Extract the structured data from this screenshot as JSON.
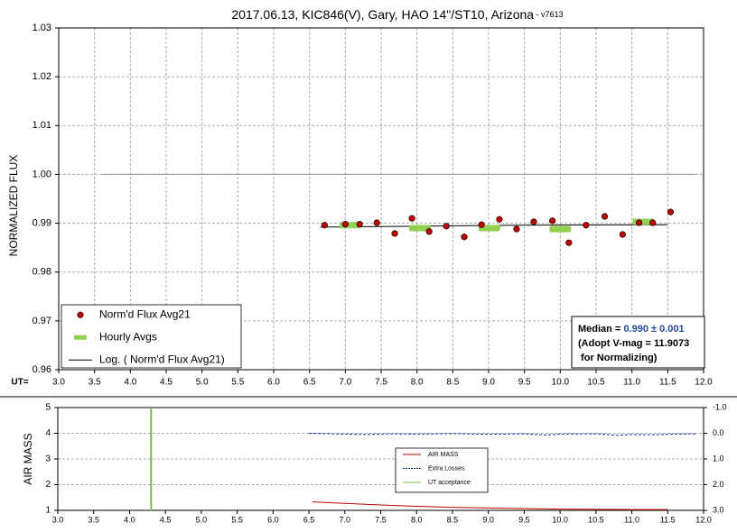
{
  "chart_data": [
    {
      "type": "scatter",
      "title": "2017.06.13, KIC846(V), Gary, HAO 14\"/ST10, Arizona",
      "subtitle": " - v7613",
      "y_label": "NORMALIZED FLUX",
      "x_label": "UT=",
      "xlim": [
        3,
        12
      ],
      "xticks": [
        {
          "value": 3,
          "label": "3.0"
        },
        3.5,
        {
          "value": 4,
          "label": "4.0"
        },
        4.5,
        {
          "value": 5,
          "label": "5.0"
        },
        5.5,
        {
          "value": 6,
          "label": "6.0"
        },
        6.5,
        {
          "value": 7,
          "label": "7.0"
        },
        7.5,
        {
          "value": 8,
          "label": "8.0"
        },
        8.5,
        {
          "value": 9,
          "label": "9.0"
        },
        9.5,
        {
          "value": 10,
          "label": "10.0"
        },
        10.5,
        {
          "value": 11,
          "label": "11.0"
        },
        11.5,
        {
          "value": 12,
          "label": "12.0"
        }
      ],
      "ylim": [
        0.96,
        1.03
      ],
      "yticks": [
        0.96,
        0.97,
        0.98,
        0.99,
        {
          "value": 1,
          "label": "1.00"
        },
        1.01,
        1.02,
        1.03
      ],
      "grid": "both",
      "legend": "lower left",
      "series": [
        {
          "color": "#999999",
          "style": "line",
          "x": [
            3.6,
            11.9
          ],
          "values": [
            1,
            1
          ]
        },
        {
          "name": "Log. ( Norm'd Flux Avg21)",
          "color": "#000000",
          "style": "line",
          "x": [
            6.65,
            8,
            9.5,
            11.5
          ],
          "values": [
            0.9892,
            0.9894,
            0.9896,
            0.9897
          ]
        },
        {
          "name": "Hourly Avgs",
          "color": "#92d050",
          "style": "segment",
          "x": [
            7.07,
            8.04,
            9.01,
            10.0,
            11.16
          ],
          "values": [
            0.9896,
            0.989,
            0.989,
            0.9888,
            0.9903
          ]
        },
        {
          "name": "Norm'd Flux Avg21",
          "color": "#c00000",
          "style": "marker",
          "x": [
            6.71,
            7.0,
            7.2,
            7.44,
            7.69,
            7.93,
            8.17,
            8.41,
            8.66,
            8.9,
            9.15,
            9.39,
            9.63,
            9.89,
            10.12,
            10.36,
            10.62,
            10.87,
            11.1,
            11.29,
            11.54
          ],
          "values": [
            0.9896,
            0.9898,
            0.9898,
            0.9901,
            0.9879,
            0.991,
            0.9883,
            0.9894,
            0.9872,
            0.9897,
            0.9908,
            0.9888,
            0.9903,
            0.9905,
            0.986,
            0.9896,
            0.9914,
            0.9877,
            0.9901,
            0.9901,
            0.9923
          ]
        }
      ],
      "annotation": {
        "median_label": "Median = ",
        "median_value": "0.990 ± 0.001",
        "line2": "(Adopt V-mag = 11.9073",
        "line3": " for Normalizing)"
      }
    },
    {
      "type": "line",
      "y_label": "AIR MASS",
      "xlim": [
        3,
        12
      ],
      "xticks": [
        {
          "value": 3,
          "label": "3.0"
        },
        3.5,
        {
          "value": 4,
          "label": "4.0"
        },
        4.5,
        {
          "value": 5,
          "label": "5.0"
        },
        5.5,
        {
          "value": 6,
          "label": "6.0"
        },
        6.5,
        {
          "value": 7,
          "label": "7.0"
        },
        7.5,
        {
          "value": 8,
          "label": "8.0"
        },
        8.5,
        {
          "value": 9,
          "label": "9.0"
        },
        9.5,
        {
          "value": 10,
          "label": "10.0"
        },
        10.5,
        {
          "value": 11,
          "label": "11.0"
        },
        11.5,
        {
          "value": 12,
          "label": "12.0"
        }
      ],
      "ylim": [
        1,
        5
      ],
      "yticks": [
        1,
        2,
        3,
        4,
        5
      ],
      "y2lim": [
        3,
        -1
      ],
      "y2ticks": [
        {
          "value": -1,
          "label": "-1.0"
        },
        {
          "value": 0,
          "label": "0.0"
        },
        {
          "value": 1,
          "label": "1.0"
        },
        {
          "value": 2,
          "label": "2.0"
        },
        {
          "value": 3,
          "label": "3.0"
        }
      ],
      "grid": "y",
      "legend": "center",
      "series": [
        {
          "name": "AIR MASS",
          "color": "#c00000",
          "style": "line",
          "x": [
            6.55,
            7.0,
            7.5,
            8.0,
            8.5,
            9.0,
            9.5,
            10.0,
            10.5,
            11.0,
            11.5
          ],
          "values": [
            1.33,
            1.27,
            1.21,
            1.16,
            1.12,
            1.09,
            1.07,
            1.05,
            1.04,
            1.03,
            1.03
          ]
        },
        {
          "name": "Extra Losses",
          "color": "#002fa7",
          "style": "line",
          "dashed": true,
          "axis": "y2",
          "x": [
            6.5,
            7.0,
            7.3,
            7.6,
            8.0,
            8.5,
            9.0,
            9.5,
            9.8,
            10.0,
            10.5,
            10.8,
            11.0,
            11.3,
            11.6,
            11.9
          ],
          "values": [
            0,
            0.03,
            0.05,
            0.02,
            0.03,
            0.01,
            0.04,
            0.02,
            0.07,
            0.03,
            0.02,
            0.08,
            0.05,
            0.06,
            0.03,
            0.02
          ]
        },
        {
          "name": "UT acceptance",
          "color": "#70c040",
          "style": "line",
          "x": [
            4.3,
            4.3
          ],
          "values": [
            1,
            5
          ]
        }
      ]
    }
  ]
}
